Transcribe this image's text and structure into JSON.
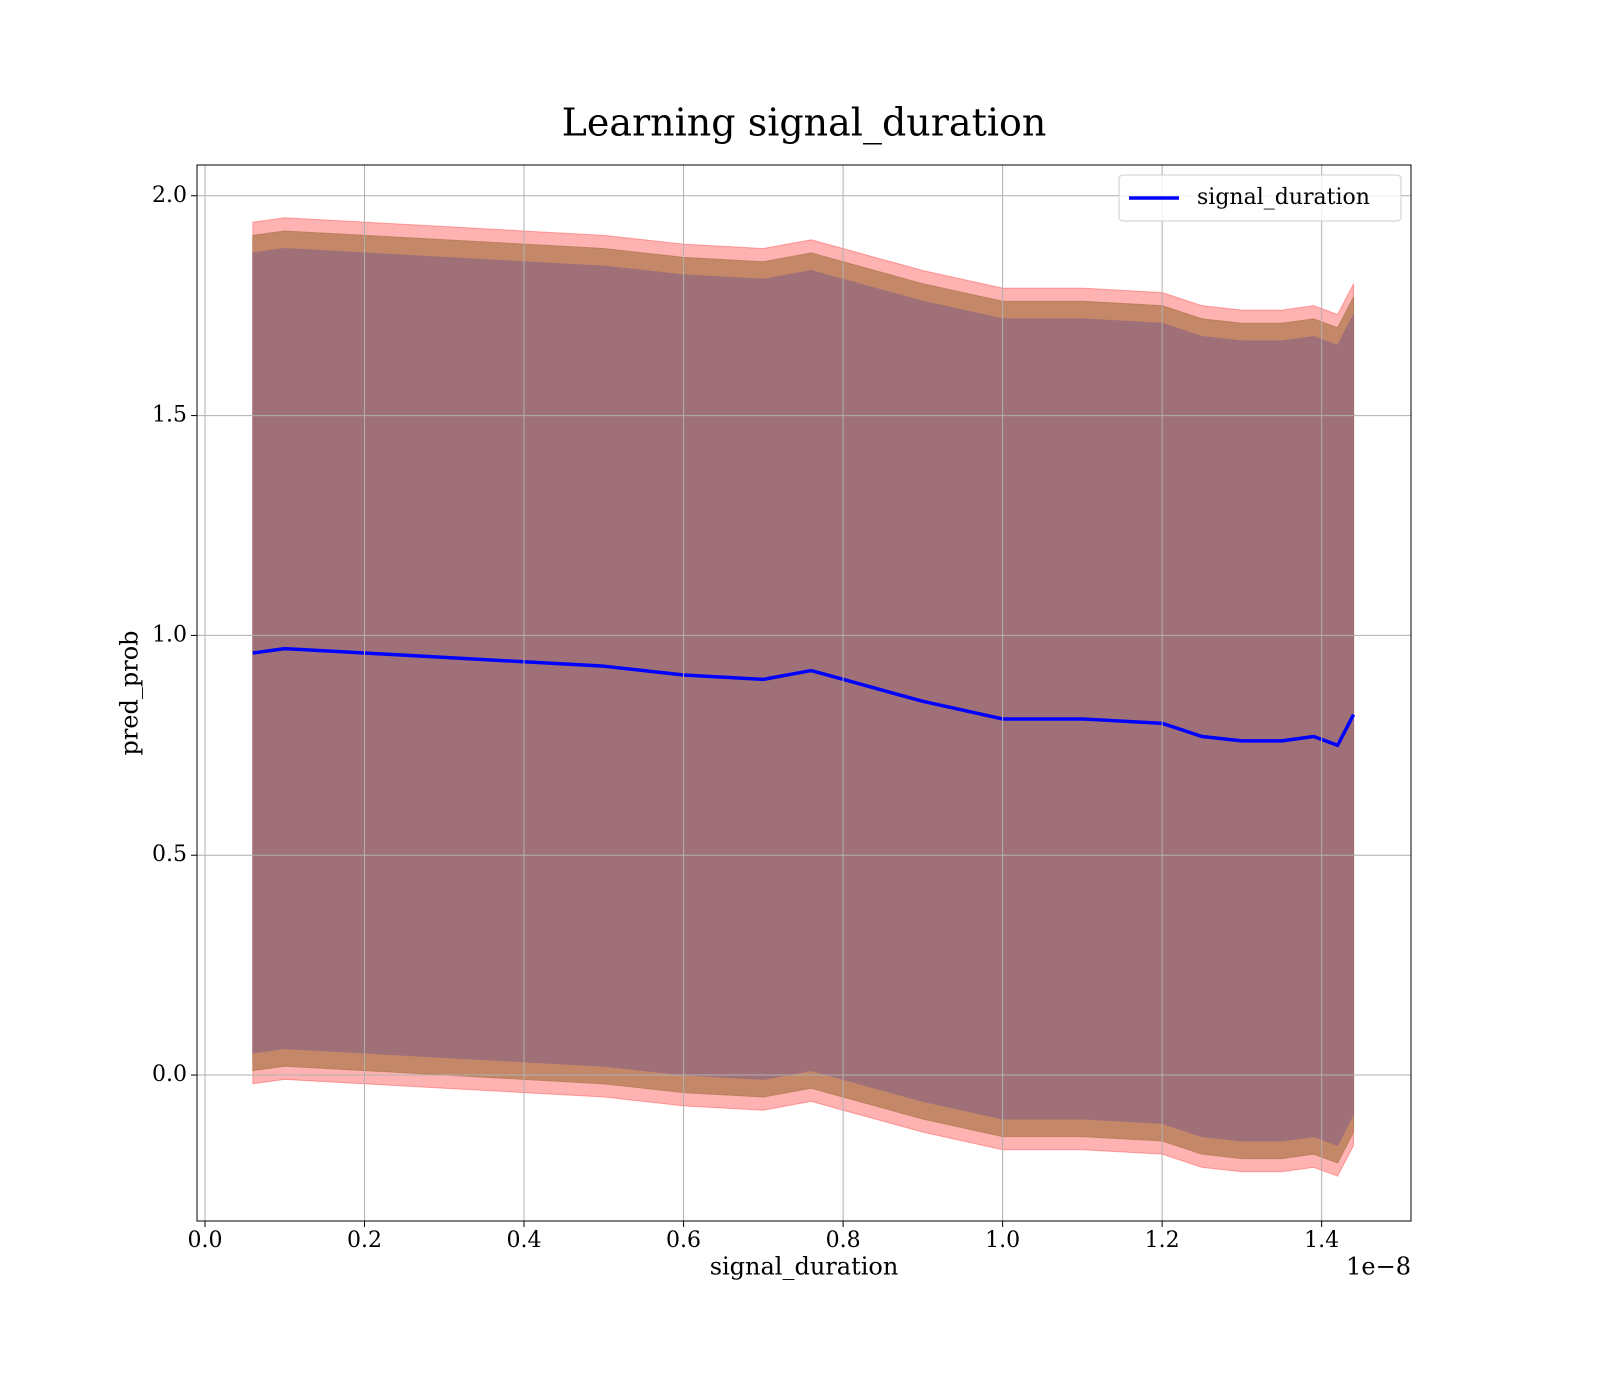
{
  "chart_data": {
    "type": "line",
    "title": "Learning signal_duration",
    "x_label": "signal_duration",
    "y_label": "pred_prob",
    "x_offset_label": "1e−8",
    "x": [
      0.06,
      0.1,
      0.2,
      0.3,
      0.4,
      0.5,
      0.6,
      0.7,
      0.76,
      0.8,
      0.9,
      1.0,
      1.1,
      1.2,
      1.25,
      1.3,
      1.35,
      1.39,
      1.42,
      1.44
    ],
    "series": [
      {
        "name": "signal_duration",
        "color": "#0000ff",
        "values": [
          0.96,
          0.97,
          0.96,
          0.95,
          0.94,
          0.93,
          0.91,
          0.9,
          0.92,
          0.9,
          0.85,
          0.81,
          0.81,
          0.8,
          0.77,
          0.76,
          0.76,
          0.77,
          0.75,
          0.82
        ]
      }
    ],
    "bands": [
      {
        "color": "#ff0000",
        "opacity": 0.3,
        "upper": [
          1.94,
          1.95,
          1.94,
          1.93,
          1.92,
          1.91,
          1.89,
          1.88,
          1.9,
          1.88,
          1.83,
          1.79,
          1.79,
          1.78,
          1.75,
          1.74,
          1.74,
          1.75,
          1.73,
          1.8
        ],
        "lower": [
          -0.02,
          -0.01,
          -0.02,
          -0.03,
          -0.04,
          -0.05,
          -0.07,
          -0.08,
          -0.06,
          -0.08,
          -0.13,
          -0.17,
          -0.17,
          -0.18,
          -0.21,
          -0.22,
          -0.22,
          -0.21,
          -0.23,
          -0.16
        ]
      },
      {
        "color": "#b07a50",
        "opacity": 0.75,
        "upper": [
          1.91,
          1.92,
          1.91,
          1.9,
          1.89,
          1.88,
          1.86,
          1.85,
          1.87,
          1.85,
          1.8,
          1.76,
          1.76,
          1.75,
          1.72,
          1.71,
          1.71,
          1.72,
          1.7,
          1.77
        ],
        "lower": [
          0.01,
          0.02,
          0.01,
          0,
          -0.01,
          -0.02,
          -0.04,
          -0.05,
          -0.03,
          -0.05,
          -0.1,
          -0.14,
          -0.14,
          -0.15,
          -0.18,
          -0.19,
          -0.19,
          -0.18,
          -0.2,
          -0.13
        ]
      },
      {
        "color": "#a07078",
        "opacity": 1,
        "upper": [
          1.87,
          1.88,
          1.87,
          1.86,
          1.85,
          1.84,
          1.82,
          1.81,
          1.83,
          1.81,
          1.76,
          1.72,
          1.72,
          1.71,
          1.68,
          1.67,
          1.67,
          1.68,
          1.66,
          1.73
        ],
        "lower": [
          0.05,
          0.06,
          0.05,
          0.04,
          0.03,
          0.02,
          0,
          -0.01,
          0.01,
          -0.01,
          -0.06,
          -0.1,
          -0.1,
          -0.11,
          -0.14,
          -0.15,
          -0.15,
          -0.14,
          -0.16,
          -0.09
        ]
      }
    ],
    "xlim": [
      -0.01,
      1.512
    ],
    "ylim": [
      -0.332,
      2.07
    ],
    "xticks": [
      {
        "value": 0,
        "label": "0.0"
      },
      0.2,
      0.4,
      0.6,
      0.8,
      {
        "value": 1,
        "label": "1.0"
      },
      1.2,
      1.4
    ],
    "yticks": [
      {
        "value": 0,
        "label": "0.0"
      },
      0.5,
      {
        "value": 1,
        "label": "1.0"
      },
      1.5,
      {
        "value": 2,
        "label": "2.0"
      }
    ],
    "grid": true,
    "legend": "upper-right"
  }
}
